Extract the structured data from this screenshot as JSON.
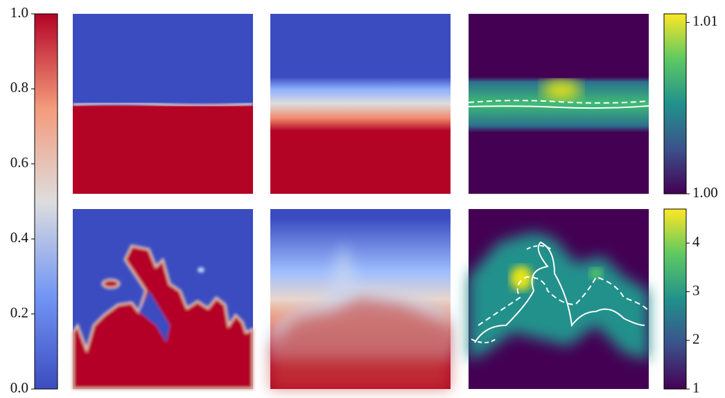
{
  "chart_data": [
    {
      "type": "colorbar",
      "colormap": "coolwarm",
      "ylim": [
        0,
        1
      ],
      "yticks": [
        {
          "value": 0,
          "label": "0.0"
        },
        0.2,
        0.4,
        0.6,
        0.8,
        {
          "value": 1,
          "label": "1.0"
        }
      ]
    },
    {
      "type": "colorbar",
      "colormap": "viridis",
      "ylim": [
        1.0,
        1.0105
      ],
      "yticks": [
        {
          "value": 1,
          "label": "1.00"
        },
        1.01
      ]
    },
    {
      "type": "colorbar",
      "colormap": "viridis",
      "ylim": [
        1,
        4.7
      ],
      "yticks": [
        1,
        2,
        3,
        4
      ]
    }
  ]
}
